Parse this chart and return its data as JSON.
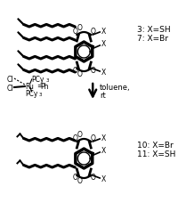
{
  "bg_color": "#ffffff",
  "label_top_1": "3: X=SH",
  "label_top_2": "7: X=Br",
  "label_bot_1": "10: X=Br",
  "label_bot_2": "11: X=SH",
  "reagent_line1": "toluene,",
  "reagent_line2": "rt",
  "figsize": [
    2.09,
    2.46
  ],
  "dpi": 100,
  "chain_lw": 2.2,
  "core_lw": 2.0
}
